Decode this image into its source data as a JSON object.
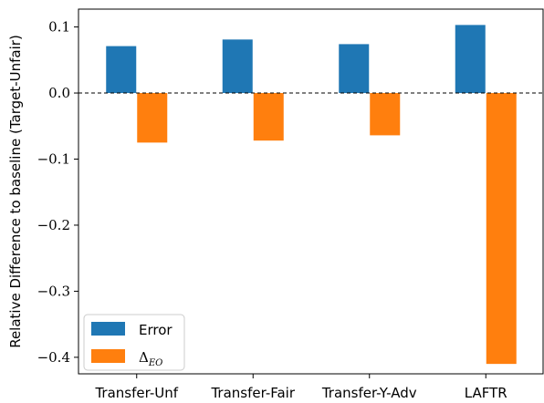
{
  "chart_data": {
    "type": "bar",
    "ylabel": "Relative Difference to baseline (Target-Unfair)",
    "categories": [
      "Transfer-Unf",
      "Transfer-Fair",
      "Transfer-Y-Adv",
      "LAFTR"
    ],
    "series": [
      {
        "name": "Error",
        "color": "#1f77b4",
        "values": [
          0.071,
          0.081,
          0.074,
          0.103
        ]
      },
      {
        "name": "Δ_EO",
        "color": "#ff7f0e",
        "values": [
          -0.075,
          -0.072,
          -0.064,
          -0.41
        ]
      }
    ],
    "legend": {
      "position": "bottom-left",
      "entries": [
        {
          "label": "Error"
        },
        {
          "symbol": "Δ",
          "subscript": "EO"
        }
      ]
    },
    "ylim": [
      -0.425,
      0.127
    ],
    "yticks": [
      0.1,
      0.0,
      -0.1,
      -0.2,
      -0.3,
      -0.4
    ],
    "ytick_labels": [
      "0.1",
      "0.0",
      "−0.1",
      "−0.2",
      "−0.3",
      "−0.4"
    ],
    "baseline": {
      "value": 0.0,
      "style": "dashed"
    },
    "grid": false
  }
}
